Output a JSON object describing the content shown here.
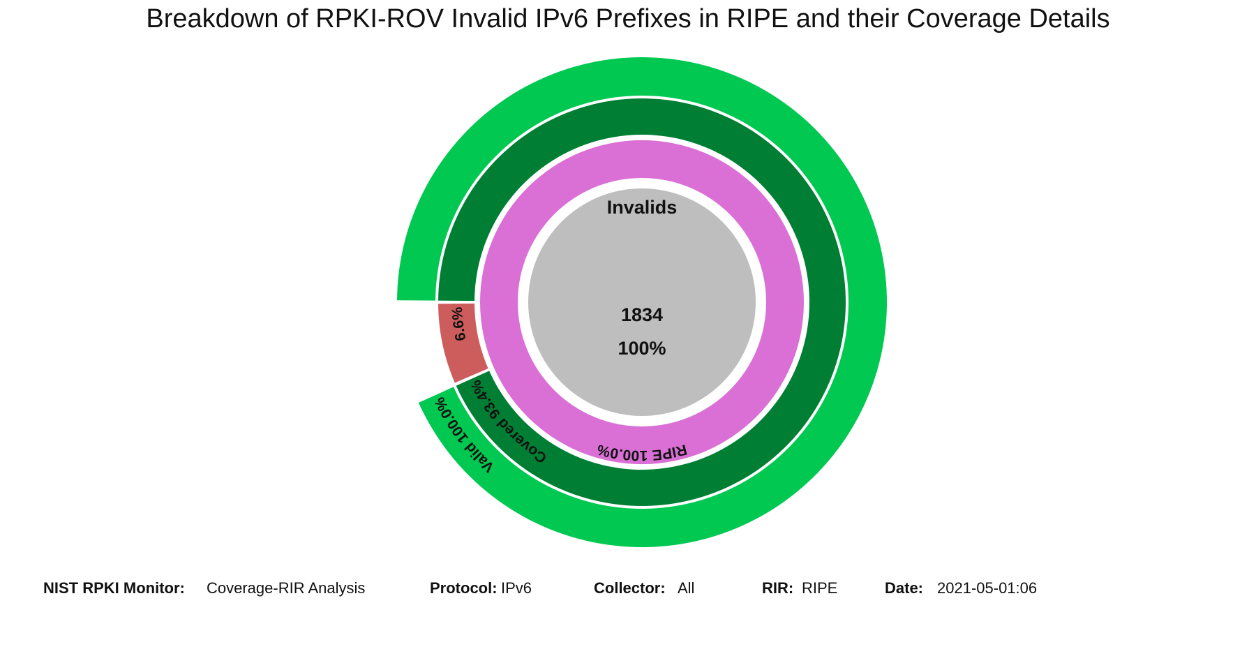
{
  "chart_data": {
    "type": "pie",
    "title": "Breakdown of RPKI-ROV Invalid IPv6 Prefixes in RIPE and their Coverage Details",
    "center": {
      "label": "Invalids",
      "count": "1834",
      "percent": "100%",
      "color": "#bebebe"
    },
    "rings": [
      {
        "name": "rir",
        "segments": [
          {
            "label": "RIPE 100.0%",
            "value": 100.0,
            "color": "#da70d6"
          }
        ]
      },
      {
        "name": "coverage",
        "segments": [
          {
            "label": "Covered 93.4%",
            "value": 93.4,
            "color": "#007e33"
          },
          {
            "label": "6.6%",
            "value": 6.6,
            "color": "#cd5c5c"
          }
        ]
      },
      {
        "name": "validity",
        "segments": [
          {
            "label": "Valid 100.0%",
            "value": 93.4,
            "color": "#00c851"
          }
        ]
      }
    ]
  },
  "footer": {
    "monitor_label": "NIST RPKI Monitor:",
    "monitor_value": "Coverage-RIR Analysis",
    "protocol_label": "Protocol:",
    "protocol_value": "IPv6",
    "collector_label": "Collector:",
    "collector_value": "All",
    "rir_label": "RIR:",
    "rir_value": "RIPE",
    "date_label": "Date:",
    "date_value": "2021-05-01:06"
  }
}
